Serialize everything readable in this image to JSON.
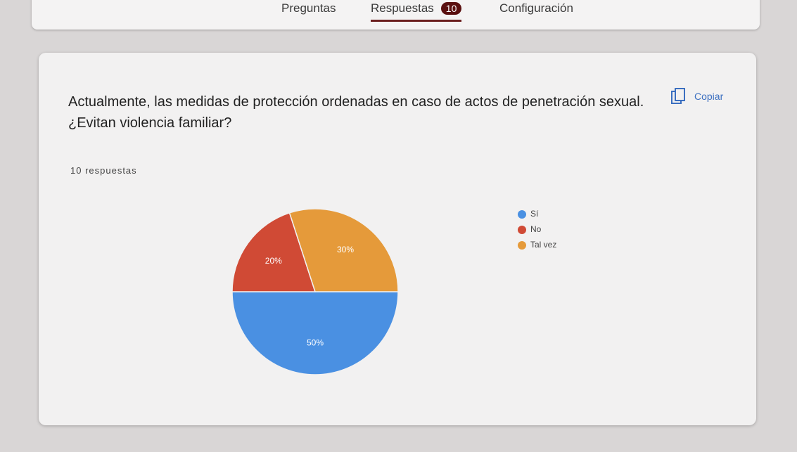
{
  "tabs": [
    "Preguntas",
    "Respuestas",
    "Configuración"
  ],
  "badge": "10",
  "copy": "Copiar",
  "chart_data": {
    "type": "pie",
    "title": "Actualmente, las medidas de protección ordenadas en caso de actos de penetración sexual. ¿Evitan violencia familiar?",
    "subtitle": "10 respuestas",
    "categories": [
      "Sí",
      "No",
      "Tal vez"
    ],
    "values": [
      50,
      20,
      30
    ],
    "value_labels": [
      "50%",
      "20%",
      "30%"
    ],
    "colors": [
      "#4a90e2",
      "#d04a35",
      "#e59a3a"
    ],
    "legend": "right"
  }
}
